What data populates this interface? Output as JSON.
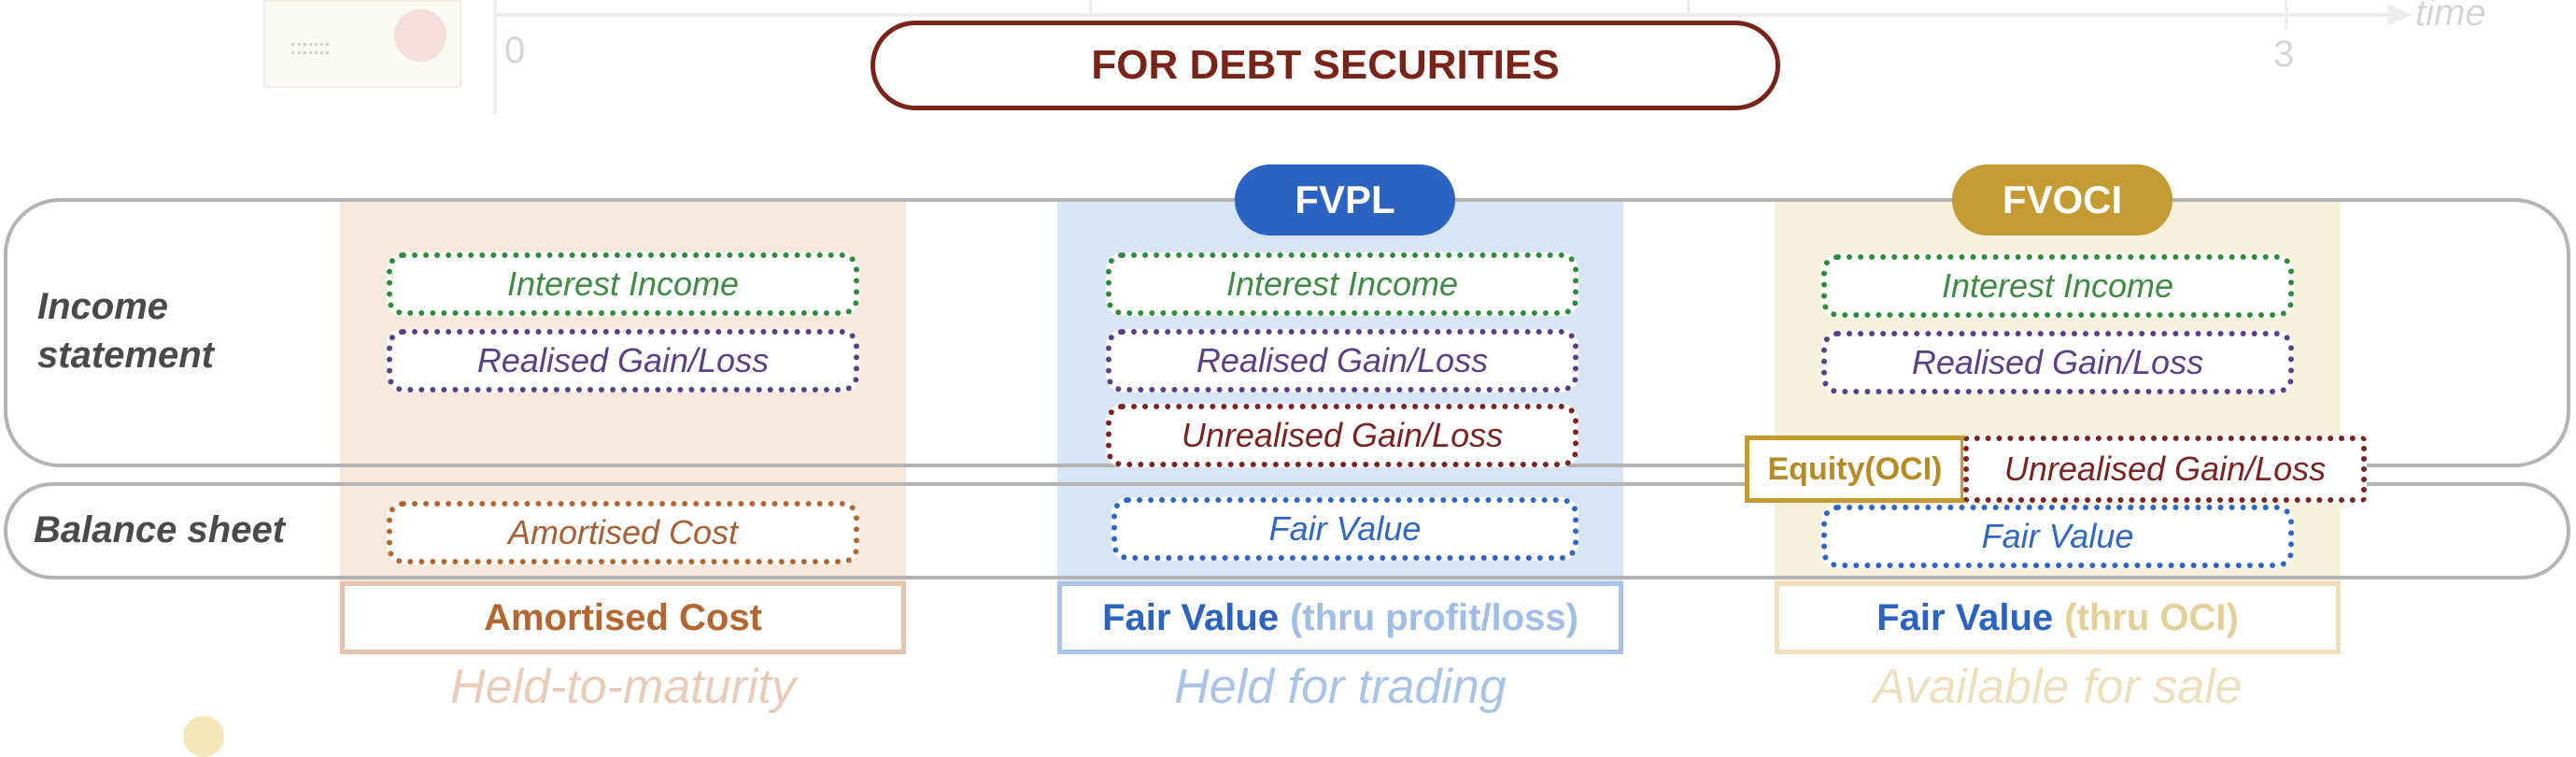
{
  "header": {
    "title": "FOR DEBT SECURITIES"
  },
  "timeline": {
    "tick_start": "0",
    "tick_end": "3",
    "axis_label": "time"
  },
  "rows": {
    "income": "Income statement",
    "balance": "Balance sheet"
  },
  "columns": [
    {
      "method_main": "Amortised Cost",
      "method_sub": "",
      "category": "Held-to-maturity",
      "income_items": [
        "Interest Income",
        "Realised Gain/Loss"
      ],
      "balance_item": "Amortised Cost"
    },
    {
      "badge": "FVPL",
      "method_main": "Fair Value",
      "method_sub": "(thru profit/loss)",
      "category": "Held for trading",
      "income_items": [
        "Interest Income",
        "Realised Gain/Loss",
        "Unrealised Gain/Loss"
      ],
      "balance_item": "Fair Value"
    },
    {
      "badge": "FVOCI",
      "method_main": "Fair Value",
      "method_sub": "(thru OCI)",
      "category": "Available for sale",
      "income_items": [
        "Interest Income",
        "Realised Gain/Loss"
      ],
      "equity_label": "Equity(OCI)",
      "equity_item": "Unrealised Gain/Loss",
      "balance_item": "Fair Value"
    }
  ],
  "colors": {
    "title": "#7a2318",
    "fvpl": "#2a63c1",
    "fvoci": "#c49a32",
    "amortised": "#b5662f"
  }
}
